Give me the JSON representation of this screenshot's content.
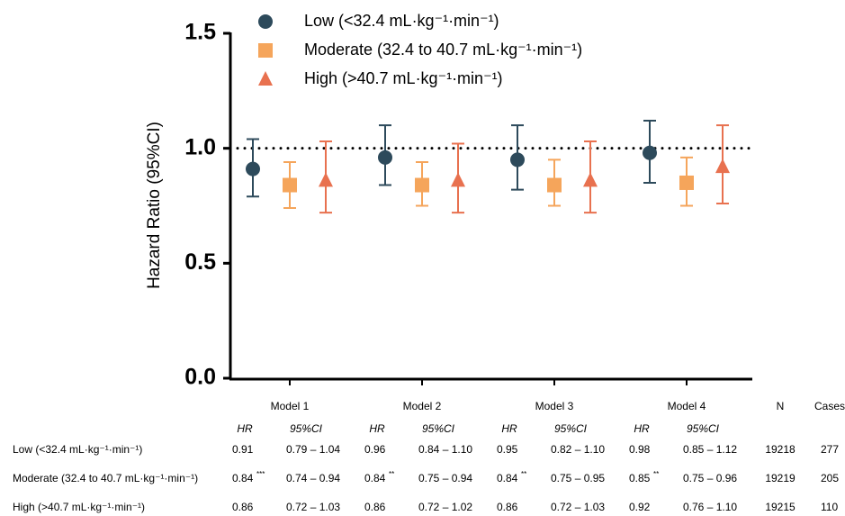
{
  "chart_data": {
    "type": "errorpoint",
    "ylabel": "Hazard Ratio (95%CI)",
    "categories": [
      "Model 1",
      "Model 2",
      "Model 3",
      "Model 4"
    ],
    "ylim": [
      0,
      1.5
    ],
    "yticks": [
      {
        "value": 0,
        "label": "0.0"
      },
      {
        "value": 0.5,
        "label": "0.5"
      },
      {
        "value": 1,
        "label": "1.0"
      },
      {
        "value": 1.5,
        "label": "1.5"
      }
    ],
    "hline": 1,
    "legend": "top",
    "series": [
      {
        "name": "Low (<32.4 mL·kg⁻¹·min⁻¹)",
        "color": "#2d4a5b",
        "marker": "circle",
        "values": [
          0.91,
          0.96,
          0.95,
          0.98
        ],
        "lower": [
          0.79,
          0.84,
          0.82,
          0.85
        ],
        "upper": [
          1.04,
          1.1,
          1.1,
          1.12
        ]
      },
      {
        "name": "Moderate (32.4 to 40.7 mL·kg⁻¹·min⁻¹)",
        "color": "#f5a55b",
        "marker": "square",
        "values": [
          0.84,
          0.84,
          0.84,
          0.85
        ],
        "lower": [
          0.74,
          0.75,
          0.75,
          0.75
        ],
        "upper": [
          0.94,
          0.94,
          0.95,
          0.96
        ]
      },
      {
        "name": "High (>40.7 mL·kg⁻¹·min⁻¹)",
        "color": "#e8714f",
        "marker": "triangle",
        "values": [
          0.86,
          0.86,
          0.86,
          0.92
        ],
        "lower": [
          0.72,
          0.72,
          0.72,
          0.76
        ],
        "upper": [
          1.03,
          1.02,
          1.03,
          1.1
        ]
      }
    ]
  },
  "table": {
    "columns": [
      "N",
      "Cases"
    ],
    "subheaders": [
      "HR",
      "95%CI"
    ],
    "rows": [
      {
        "label": "Low (<32.4 mL·kg⁻¹·min⁻¹)",
        "n": "19218",
        "cases": "277",
        "cells": [
          {
            "hr": "0.91",
            "ci": "0.79 – 1.04"
          },
          {
            "hr": "0.96",
            "ci": "0.84 – 1.10"
          },
          {
            "hr": "0.95",
            "ci": "0.82 – 1.10"
          },
          {
            "hr": "0.98",
            "ci": "0.85 – 1.12"
          }
        ]
      },
      {
        "label": "Moderate (32.4 to 40.7 mL·kg⁻¹·min⁻¹)",
        "n": "19219",
        "cases": "205",
        "cells": [
          {
            "hr": "0.84",
            "sig": "***",
            "ci": "0.74 – 0.94"
          },
          {
            "hr": "0.84",
            "sig": "**",
            "ci": "0.75 – 0.94"
          },
          {
            "hr": "0.84",
            "sig": "**",
            "ci": "0.75 – 0.95"
          },
          {
            "hr": "0.85",
            "sig": "**",
            "ci": "0.75 – 0.96"
          }
        ]
      },
      {
        "label": "High (>40.7 mL·kg⁻¹·min⁻¹)",
        "n": "19215",
        "cases": "110",
        "cells": [
          {
            "hr": "0.86",
            "ci": "0.72 – 1.03"
          },
          {
            "hr": "0.86",
            "ci": "0.72 – 1.02"
          },
          {
            "hr": "0.86",
            "ci": "0.72 – 1.03"
          },
          {
            "hr": "0.92",
            "ci": "0.76 – 1.10"
          }
        ]
      }
    ]
  }
}
